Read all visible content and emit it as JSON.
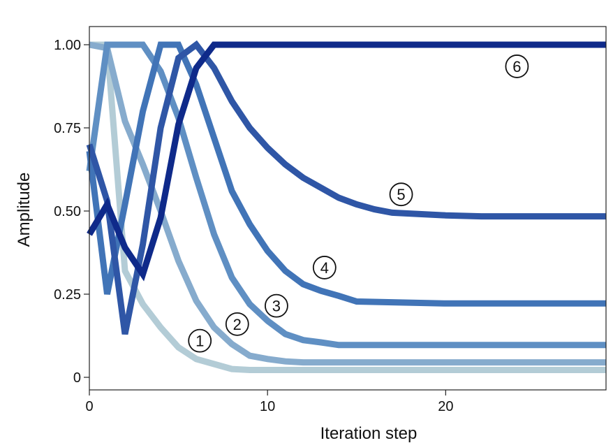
{
  "chart_data": {
    "type": "line",
    "title": "",
    "xlabel": "Iteration step",
    "ylabel": "Amplitude",
    "xlim": [
      0,
      29
    ],
    "ylim": [
      0,
      1.0
    ],
    "grid": false,
    "legend": "none",
    "x_ticks": [
      {
        "value": 0,
        "label": "0"
      },
      {
        "value": 10,
        "label": "10"
      },
      {
        "value": 20,
        "label": "20"
      }
    ],
    "y_ticks": [
      {
        "value": 0,
        "label": "0"
      },
      {
        "value": 0.25,
        "label": "0.25"
      },
      {
        "value": 0.5,
        "label": "0.50"
      },
      {
        "value": 0.75,
        "label": "0.75"
      },
      {
        "value": 1.0,
        "label": "1.00"
      }
    ],
    "series": [
      {
        "label": "1",
        "color": "#b3ccd6",
        "label_at": [
          6.2,
          0.11
        ],
        "points": [
          [
            0,
            1.0
          ],
          [
            1,
            1.0
          ],
          [
            2,
            0.32
          ],
          [
            3,
            0.22
          ],
          [
            4,
            0.15
          ],
          [
            5,
            0.09
          ],
          [
            6,
            0.055
          ],
          [
            7,
            0.04
          ],
          [
            8,
            0.025
          ],
          [
            9,
            0.022
          ],
          [
            10,
            0.022
          ],
          [
            15,
            0.022
          ],
          [
            20,
            0.022
          ],
          [
            29,
            0.022
          ]
        ]
      },
      {
        "label": "2",
        "color": "#86abcd",
        "label_at": [
          8.3,
          0.16
        ],
        "points": [
          [
            0,
            1.0
          ],
          [
            1,
            0.99
          ],
          [
            2,
            0.77
          ],
          [
            3,
            0.64
          ],
          [
            4,
            0.5
          ],
          [
            5,
            0.35
          ],
          [
            6,
            0.23
          ],
          [
            7,
            0.15
          ],
          [
            8,
            0.1
          ],
          [
            9,
            0.065
          ],
          [
            10,
            0.055
          ],
          [
            11,
            0.048
          ],
          [
            12,
            0.045
          ],
          [
            15,
            0.045
          ],
          [
            20,
            0.045
          ],
          [
            29,
            0.045
          ]
        ]
      },
      {
        "label": "3",
        "color": "#5f8fc3",
        "label_at": [
          10.5,
          0.215
        ],
        "points": [
          [
            0,
            0.62
          ],
          [
            1,
            1.0
          ],
          [
            2,
            1.0
          ],
          [
            3,
            1.0
          ],
          [
            4,
            0.92
          ],
          [
            5,
            0.78
          ],
          [
            6,
            0.6
          ],
          [
            7,
            0.43
          ],
          [
            8,
            0.3
          ],
          [
            9,
            0.22
          ],
          [
            10,
            0.17
          ],
          [
            11,
            0.13
          ],
          [
            12,
            0.112
          ],
          [
            13,
            0.105
          ],
          [
            14,
            0.097
          ],
          [
            15,
            0.097
          ],
          [
            20,
            0.097
          ],
          [
            29,
            0.097
          ]
        ]
      },
      {
        "label": "4",
        "color": "#4174b7",
        "label_at": [
          13.2,
          0.33
        ],
        "points": [
          [
            0,
            0.68
          ],
          [
            1,
            0.25
          ],
          [
            2,
            0.52
          ],
          [
            3,
            0.8
          ],
          [
            4,
            1.0
          ],
          [
            5,
            1.0
          ],
          [
            6,
            0.88
          ],
          [
            7,
            0.72
          ],
          [
            8,
            0.56
          ],
          [
            9,
            0.46
          ],
          [
            10,
            0.38
          ],
          [
            11,
            0.32
          ],
          [
            12,
            0.28
          ],
          [
            13,
            0.26
          ],
          [
            14,
            0.245
          ],
          [
            15,
            0.228
          ],
          [
            20,
            0.222
          ],
          [
            29,
            0.222
          ]
        ]
      },
      {
        "label": "5",
        "color": "#2f56a6",
        "label_at": [
          17.5,
          0.55
        ],
        "points": [
          [
            0,
            0.7
          ],
          [
            1,
            0.53
          ],
          [
            2,
            0.13
          ],
          [
            3,
            0.4
          ],
          [
            4,
            0.75
          ],
          [
            5,
            0.96
          ],
          [
            6,
            1.0
          ],
          [
            7,
            0.93
          ],
          [
            8,
            0.83
          ],
          [
            9,
            0.75
          ],
          [
            10,
            0.69
          ],
          [
            11,
            0.64
          ],
          [
            12,
            0.6
          ],
          [
            13,
            0.57
          ],
          [
            14,
            0.54
          ],
          [
            15,
            0.52
          ],
          [
            16,
            0.505
          ],
          [
            17,
            0.495
          ],
          [
            20,
            0.487
          ],
          [
            22,
            0.484
          ],
          [
            29,
            0.484
          ]
        ]
      },
      {
        "label": "6",
        "color": "#0f2a8a",
        "label_at": [
          24.0,
          0.935
        ],
        "points": [
          [
            0,
            0.43
          ],
          [
            1,
            0.52
          ],
          [
            2,
            0.39
          ],
          [
            3,
            0.31
          ],
          [
            4,
            0.48
          ],
          [
            5,
            0.76
          ],
          [
            6,
            0.93
          ],
          [
            7,
            1.0
          ],
          [
            10,
            1.0
          ],
          [
            15,
            1.0
          ],
          [
            20,
            1.0
          ],
          [
            29,
            1.0
          ]
        ]
      }
    ]
  }
}
